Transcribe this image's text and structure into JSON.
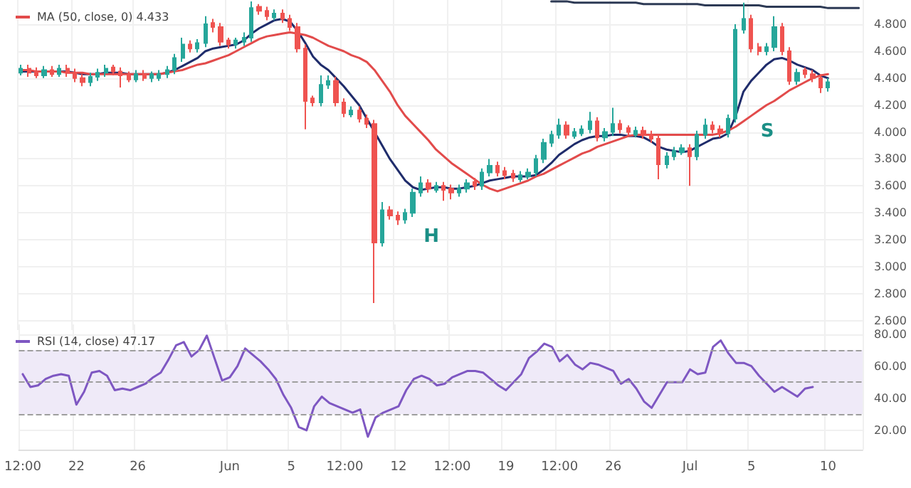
{
  "chart_data": [
    {
      "type": "candlestick",
      "categories": [
        null,
        null,
        null,
        null,
        null,
        null,
        null,
        null,
        null,
        null,
        null,
        null,
        null,
        null,
        null,
        null,
        null,
        null,
        null,
        null,
        null,
        null,
        null,
        null,
        null,
        null,
        null,
        null,
        null,
        null,
        null,
        null,
        null,
        null,
        null,
        null,
        null,
        null,
        null,
        null,
        null,
        null,
        null,
        null,
        null,
        null,
        null,
        null,
        null,
        null,
        null,
        null,
        null,
        null,
        null,
        null,
        null,
        null,
        null,
        null,
        null,
        null,
        null,
        null,
        null,
        null,
        null,
        null,
        null,
        null,
        null,
        null,
        null,
        null,
        null,
        null,
        null,
        null,
        null,
        null,
        null,
        null,
        null,
        null,
        null,
        null,
        null,
        null,
        null,
        null,
        null,
        null,
        null,
        null,
        null,
        null,
        null,
        null,
        null,
        null,
        null,
        null,
        null,
        null,
        null,
        null,
        null,
        null,
        null,
        null
      ],
      "ohlc": [
        [
          4.44,
          4.5,
          4.42,
          4.47
        ],
        [
          4.47,
          4.5,
          4.41,
          4.44
        ],
        [
          4.45,
          4.48,
          4.4,
          4.42
        ],
        [
          4.42,
          4.49,
          4.4,
          4.46
        ],
        [
          4.46,
          4.49,
          4.41,
          4.43
        ],
        [
          4.43,
          4.5,
          4.41,
          4.47
        ],
        [
          4.47,
          4.5,
          4.41,
          4.44
        ],
        [
          4.44,
          4.47,
          4.37,
          4.4
        ],
        [
          4.4,
          4.43,
          4.34,
          4.37
        ],
        [
          4.37,
          4.44,
          4.34,
          4.41
        ],
        [
          4.41,
          4.47,
          4.38,
          4.44
        ],
        [
          4.44,
          4.5,
          4.41,
          4.47
        ],
        [
          4.48,
          4.5,
          4.42,
          4.45
        ],
        [
          4.45,
          4.48,
          4.33,
          4.42
        ],
        [
          4.42,
          4.45,
          4.37,
          4.39
        ],
        [
          4.39,
          4.46,
          4.37,
          4.43
        ],
        [
          4.43,
          4.46,
          4.38,
          4.4
        ],
        [
          4.4,
          4.45,
          4.37,
          4.43
        ],
        [
          4.4,
          4.46,
          4.38,
          4.43
        ],
        [
          4.43,
          4.49,
          4.4,
          4.46
        ],
        [
          4.46,
          4.58,
          4.43,
          4.55
        ],
        [
          4.55,
          4.7,
          4.52,
          4.65
        ],
        [
          4.65,
          4.68,
          4.59,
          4.62
        ],
        [
          4.62,
          4.69,
          4.59,
          4.66
        ],
        [
          4.66,
          4.86,
          4.63,
          4.8
        ],
        [
          4.81,
          4.84,
          4.74,
          4.78
        ],
        [
          4.78,
          4.81,
          4.64,
          4.67
        ],
        [
          4.68,
          4.7,
          4.62,
          4.65
        ],
        [
          4.65,
          4.7,
          4.62,
          4.68
        ],
        [
          4.67,
          4.74,
          4.64,
          4.7
        ],
        [
          4.7,
          4.97,
          4.67,
          4.92
        ],
        [
          4.93,
          4.95,
          4.87,
          4.9
        ],
        [
          4.9,
          4.93,
          4.83,
          4.86
        ],
        [
          4.85,
          4.91,
          4.83,
          4.88
        ],
        [
          4.88,
          4.91,
          4.81,
          4.84
        ],
        [
          4.84,
          4.87,
          4.75,
          4.78
        ],
        [
          4.78,
          4.81,
          4.59,
          4.62
        ],
        [
          4.62,
          4.65,
          4.02,
          4.23
        ],
        [
          4.25,
          4.27,
          4.19,
          4.22
        ],
        [
          4.22,
          4.42,
          4.19,
          4.35
        ],
        [
          4.35,
          4.42,
          4.32,
          4.38
        ],
        [
          4.38,
          4.41,
          4.19,
          4.22
        ],
        [
          4.22,
          4.25,
          4.11,
          4.14
        ],
        [
          4.13,
          4.19,
          4.11,
          4.16
        ],
        [
          4.16,
          4.19,
          4.07,
          4.1
        ],
        [
          4.1,
          4.13,
          4.03,
          4.06
        ],
        [
          4.06,
          4.09,
          2.73,
          3.18
        ],
        [
          3.18,
          3.48,
          3.15,
          3.42
        ],
        [
          3.42,
          3.45,
          3.35,
          3.38
        ],
        [
          3.38,
          3.41,
          3.31,
          3.35
        ],
        [
          3.35,
          3.43,
          3.32,
          3.4
        ],
        [
          3.4,
          3.58,
          3.37,
          3.55
        ],
        [
          3.55,
          3.67,
          3.52,
          3.62
        ],
        [
          3.62,
          3.65,
          3.55,
          3.58
        ],
        [
          3.57,
          3.63,
          3.55,
          3.6
        ],
        [
          3.6,
          3.63,
          3.49,
          3.57
        ],
        [
          3.58,
          3.61,
          3.5,
          3.55
        ],
        [
          3.55,
          3.61,
          3.52,
          3.58
        ],
        [
          3.58,
          3.65,
          3.55,
          3.62
        ],
        [
          3.63,
          3.66,
          3.57,
          3.6
        ],
        [
          3.6,
          3.73,
          3.57,
          3.7
        ],
        [
          3.7,
          3.8,
          3.67,
          3.75
        ],
        [
          3.75,
          3.78,
          3.67,
          3.7
        ],
        [
          3.71,
          3.74,
          3.65,
          3.68
        ],
        [
          3.69,
          3.72,
          3.63,
          3.66
        ],
        [
          3.65,
          3.71,
          3.63,
          3.68
        ],
        [
          3.67,
          3.73,
          3.65,
          3.7
        ],
        [
          3.7,
          3.83,
          3.67,
          3.8
        ],
        [
          3.8,
          3.95,
          3.77,
          3.92
        ],
        [
          3.92,
          4.01,
          3.89,
          3.98
        ],
        [
          3.98,
          4.1,
          3.95,
          4.05
        ],
        [
          4.05,
          4.08,
          3.95,
          3.98
        ],
        [
          3.97,
          4.03,
          3.95,
          4.0
        ],
        [
          3.99,
          4.05,
          3.97,
          4.02
        ],
        [
          4.02,
          4.15,
          3.99,
          4.08
        ],
        [
          4.08,
          4.11,
          3.93,
          3.96
        ],
        [
          3.96,
          4.03,
          3.93,
          4.0
        ],
        [
          4.0,
          4.18,
          3.97,
          4.06
        ],
        [
          4.06,
          4.09,
          3.99,
          4.02
        ],
        [
          4.03,
          4.05,
          3.97,
          4.0
        ],
        [
          3.98,
          4.04,
          3.96,
          4.01
        ],
        [
          4.01,
          4.04,
          3.95,
          3.98
        ],
        [
          3.98,
          4.01,
          3.92,
          3.95
        ],
        [
          3.95,
          3.98,
          3.65,
          3.76
        ],
        [
          3.76,
          3.85,
          3.73,
          3.82
        ],
        [
          3.82,
          3.89,
          3.79,
          3.86
        ],
        [
          3.85,
          3.91,
          3.83,
          3.88
        ],
        [
          3.88,
          3.91,
          3.6,
          3.82
        ],
        [
          3.82,
          4.01,
          3.79,
          3.98
        ],
        [
          3.98,
          4.1,
          3.95,
          4.05
        ],
        [
          4.05,
          4.08,
          3.99,
          4.02
        ],
        [
          4.02,
          4.05,
          3.96,
          3.99
        ],
        [
          3.99,
          4.13,
          3.96,
          4.1
        ],
        [
          4.1,
          4.8,
          4.07,
          4.76
        ],
        [
          4.76,
          4.96,
          4.73,
          4.84
        ],
        [
          4.84,
          4.87,
          4.59,
          4.62
        ],
        [
          4.63,
          4.66,
          4.57,
          4.6
        ],
        [
          4.6,
          4.66,
          4.57,
          4.63
        ],
        [
          4.63,
          4.86,
          4.6,
          4.78
        ],
        [
          4.78,
          4.81,
          4.57,
          4.6
        ],
        [
          4.6,
          4.63,
          4.35,
          4.38
        ],
        [
          4.38,
          4.47,
          4.35,
          4.44
        ],
        [
          4.46,
          4.48,
          4.4,
          4.43
        ],
        [
          4.43,
          4.46,
          4.37,
          4.4
        ],
        [
          4.4,
          4.43,
          4.29,
          4.33
        ],
        [
          4.33,
          4.4,
          4.3,
          4.37
        ],
        null,
        null,
        null,
        null
      ],
      "series": [
        {
          "type": "line",
          "color": "#1f2c6b",
          "values": [
            4.45,
            4.45,
            4.45,
            4.45,
            4.45,
            4.45,
            4.45,
            4.44,
            4.43,
            4.43,
            4.43,
            4.44,
            4.44,
            4.44,
            4.43,
            4.43,
            4.43,
            4.43,
            4.43,
            4.44,
            4.46,
            4.49,
            4.52,
            4.55,
            4.6,
            4.62,
            4.63,
            4.64,
            4.65,
            4.68,
            4.73,
            4.77,
            4.8,
            4.83,
            4.84,
            4.82,
            4.75,
            4.66,
            4.56,
            4.5,
            4.46,
            4.4,
            4.34,
            4.27,
            4.2,
            4.1,
            4.0,
            3.9,
            3.8,
            3.72,
            3.64,
            3.59,
            3.57,
            3.58,
            3.59,
            3.59,
            3.58,
            3.58,
            3.59,
            3.6,
            3.62,
            3.64,
            3.65,
            3.66,
            3.67,
            3.67,
            3.67,
            3.68,
            3.72,
            3.77,
            3.83,
            3.87,
            3.91,
            3.94,
            3.96,
            3.97,
            3.97,
            3.98,
            3.98,
            3.97,
            3.97,
            3.96,
            3.93,
            3.89,
            3.87,
            3.86,
            3.85,
            3.86,
            3.89,
            3.92,
            3.95,
            3.96,
            3.99,
            4.12,
            4.3,
            4.38,
            4.44,
            4.5,
            4.54,
            4.55,
            4.53,
            4.5,
            4.48,
            4.46,
            4.42,
            4.4,
            null,
            null,
            null,
            null
          ]
        },
        {
          "type": "line",
          "name": "MA (50, close, 0) 4.433",
          "color": "#e24b4b",
          "values": [
            4.46,
            4.46,
            4.45,
            4.45,
            4.45,
            4.45,
            4.44,
            4.44,
            4.44,
            4.43,
            4.43,
            4.43,
            4.43,
            4.43,
            4.43,
            4.43,
            4.43,
            4.43,
            4.43,
            4.44,
            4.45,
            4.46,
            4.48,
            4.5,
            4.51,
            4.53,
            4.55,
            4.57,
            4.6,
            4.63,
            4.66,
            4.69,
            4.71,
            4.72,
            4.73,
            4.74,
            4.73,
            4.72,
            4.7,
            4.67,
            4.64,
            4.62,
            4.6,
            4.57,
            4.55,
            4.52,
            4.46,
            4.38,
            4.3,
            4.2,
            4.12,
            4.06,
            4.0,
            3.94,
            3.87,
            3.82,
            3.77,
            3.73,
            3.69,
            3.65,
            3.61,
            3.58,
            3.56,
            3.58,
            3.6,
            3.62,
            3.64,
            3.67,
            3.69,
            3.72,
            3.75,
            3.78,
            3.81,
            3.84,
            3.86,
            3.89,
            3.91,
            3.93,
            3.95,
            3.97,
            3.98,
            3.98,
            3.98,
            3.98,
            3.98,
            3.98,
            3.98,
            3.98,
            3.98,
            3.98,
            3.98,
            3.99,
            4.01,
            4.04,
            4.08,
            4.12,
            4.16,
            4.2,
            4.23,
            4.27,
            4.31,
            4.34,
            4.37,
            4.4,
            4.42,
            4.43,
            null,
            null,
            null,
            null
          ]
        },
        {
          "type": "line",
          "color": "#2d3a55",
          "values": [
            null,
            null,
            null,
            null,
            null,
            null,
            null,
            null,
            null,
            null,
            null,
            null,
            null,
            null,
            null,
            null,
            null,
            null,
            null,
            null,
            null,
            null,
            null,
            null,
            null,
            null,
            null,
            null,
            null,
            null,
            null,
            null,
            null,
            null,
            null,
            null,
            null,
            null,
            null,
            null,
            null,
            null,
            null,
            null,
            null,
            null,
            null,
            null,
            null,
            null,
            null,
            null,
            null,
            null,
            null,
            null,
            null,
            null,
            null,
            null,
            null,
            null,
            null,
            null,
            null,
            null,
            null,
            null,
            null,
            4.97,
            4.97,
            4.97,
            4.96,
            4.96,
            4.96,
            4.96,
            4.96,
            4.96,
            4.96,
            4.96,
            4.96,
            4.95,
            4.95,
            4.95,
            4.95,
            4.95,
            4.95,
            4.95,
            4.95,
            4.94,
            4.94,
            4.94,
            4.94,
            4.94,
            4.94,
            4.94,
            4.94,
            4.93,
            4.93,
            4.93,
            4.93,
            4.93,
            4.93,
            4.93,
            4.93,
            4.92,
            4.92,
            4.92,
            4.92,
            4.92
          ]
        }
      ],
      "ylim": [
        2.53,
        4.98
      ],
      "yticks": [
        {
          "value": 2.6,
          "label": "2.600"
        },
        {
          "value": 2.8,
          "label": "2.800"
        },
        {
          "value": 3.0,
          "label": "3.000"
        },
        {
          "value": 3.2,
          "label": "3.200"
        },
        {
          "value": 3.4,
          "label": "3.400"
        },
        {
          "value": 3.6,
          "label": "3.600"
        },
        {
          "value": 3.8,
          "label": "3.800"
        },
        {
          "value": 4.0,
          "label": "4.000"
        },
        {
          "value": 4.2,
          "label": "4.200"
        },
        {
          "value": 4.4,
          "label": "4.400"
        },
        {
          "value": 4.6,
          "label": "4.600"
        },
        {
          "value": 4.8,
          "label": "4.800"
        }
      ],
      "annotations": [
        "H",
        "S"
      ],
      "grid": true,
      "legend": "top left",
      "tick_labels": "y",
      "marker": "none"
    },
    {
      "type": "line",
      "categories": [
        "12:00",
        null,
        null,
        null,
        null,
        null,
        null,
        "22",
        null,
        null,
        null,
        null,
        null,
        null,
        null,
        "26",
        null,
        null,
        null,
        null,
        null,
        null,
        null,
        null,
        null,
        null,
        null,
        "Jun",
        null,
        null,
        null,
        null,
        null,
        null,
        null,
        "5",
        null,
        null,
        null,
        null,
        null,
        null,
        "12:00",
        null,
        null,
        null,
        null,
        null,
        null,
        "12",
        null,
        null,
        null,
        null,
        null,
        null,
        "12:00",
        null,
        null,
        null,
        null,
        null,
        null,
        "19",
        null,
        null,
        null,
        null,
        null,
        null,
        "12:00",
        null,
        null,
        null,
        null,
        null,
        null,
        "26",
        null,
        null,
        null,
        null,
        null,
        null,
        null,
        null,
        null,
        "Jul",
        null,
        null,
        null,
        null,
        null,
        null,
        null,
        "5",
        null,
        null,
        null,
        null,
        null,
        null,
        null,
        null,
        null,
        "10",
        null,
        null,
        null,
        null
      ],
      "series": [
        {
          "name": "RSI (14, close) 47.17",
          "color": "#7e57c2",
          "values": [
            55,
            47,
            48,
            52,
            54,
            55,
            54,
            36,
            44,
            56,
            57,
            54,
            45,
            46,
            45,
            47,
            49,
            53,
            56,
            64,
            73,
            75,
            66,
            70,
            79,
            65,
            51,
            53,
            60,
            71,
            67,
            63,
            58,
            52,
            42,
            34,
            22,
            20,
            35,
            41,
            37,
            35,
            33,
            31,
            33,
            16,
            28,
            31,
            33,
            35,
            45,
            52,
            54,
            52,
            48,
            49,
            53,
            55,
            57,
            57,
            56,
            52,
            48,
            45,
            50,
            55,
            65,
            69,
            74,
            72,
            63,
            67,
            61,
            58,
            62,
            61,
            59,
            57,
            49,
            52,
            46,
            38,
            34,
            42,
            50,
            50,
            50,
            58,
            55,
            56,
            72,
            76,
            68,
            62,
            62,
            60,
            54,
            49,
            44,
            47,
            44,
            41,
            46,
            47,
            null,
            null,
            null,
            null,
            null,
            null
          ]
        }
      ],
      "ylim": [
        8,
        86
      ],
      "yticks": [
        {
          "value": 20,
          "label": "20.00"
        },
        {
          "value": 40,
          "label": "40.00"
        },
        {
          "value": 60,
          "label": "60.00"
        },
        {
          "value": 80,
          "label": "80.00"
        }
      ],
      "ref_lines": [
        {
          "axis": "y",
          "value": 70,
          "line_style": "dashed"
        },
        {
          "axis": "y",
          "value": 50,
          "line_style": "dashed"
        },
        {
          "axis": "y",
          "value": 30,
          "line_style": "dashed"
        }
      ],
      "bands": [
        {
          "axis": "y",
          "from": 30,
          "to": 70,
          "color": "#efeaf8"
        }
      ],
      "grid": true,
      "legend": "top left",
      "marker": "none"
    }
  ]
}
